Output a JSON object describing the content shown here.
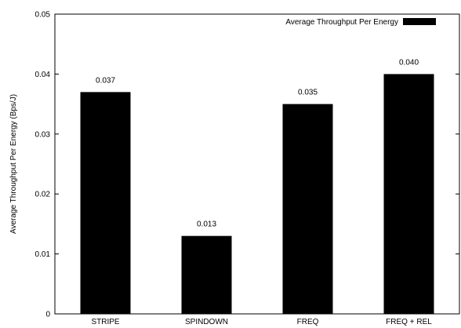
{
  "chart_data": {
    "type": "bar",
    "title": "",
    "xlabel": "",
    "ylabel": "Average Throughput Per Energy (Bps/J)",
    "categories": [
      "STRIPE",
      "SPINDOWN",
      "FREQ",
      "FREQ + REL"
    ],
    "series": [
      {
        "name": "Average Throughput Per Energy",
        "values": [
          0.037,
          0.013,
          0.035,
          0.04
        ],
        "color": "#000000"
      }
    ],
    "data_labels": [
      "0.037",
      "0.013",
      "0.035",
      "0.040"
    ],
    "ylim": [
      0,
      0.05
    ],
    "yticks": [
      0,
      0.01,
      0.02,
      0.03,
      0.04,
      0.05
    ],
    "ytick_labels": [
      "0",
      "0.01",
      "0.02",
      "0.03",
      "0.04",
      "0.05"
    ],
    "grid": false,
    "legend_position": "top-right"
  }
}
